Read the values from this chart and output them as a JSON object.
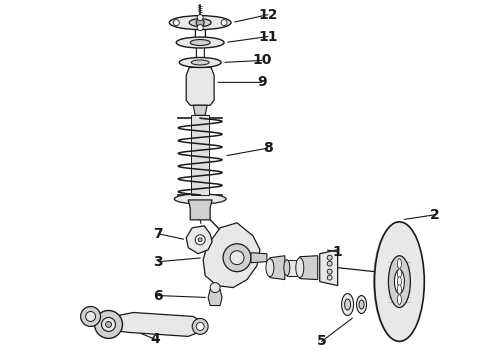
{
  "bg_color": "#ffffff",
  "line_color": "#1a1a1a",
  "fig_width": 4.9,
  "fig_height": 3.6,
  "dpi": 100,
  "gray_light": "#e8e8e8",
  "gray_med": "#d0d0d0",
  "gray_dark": "#b0b0b0"
}
